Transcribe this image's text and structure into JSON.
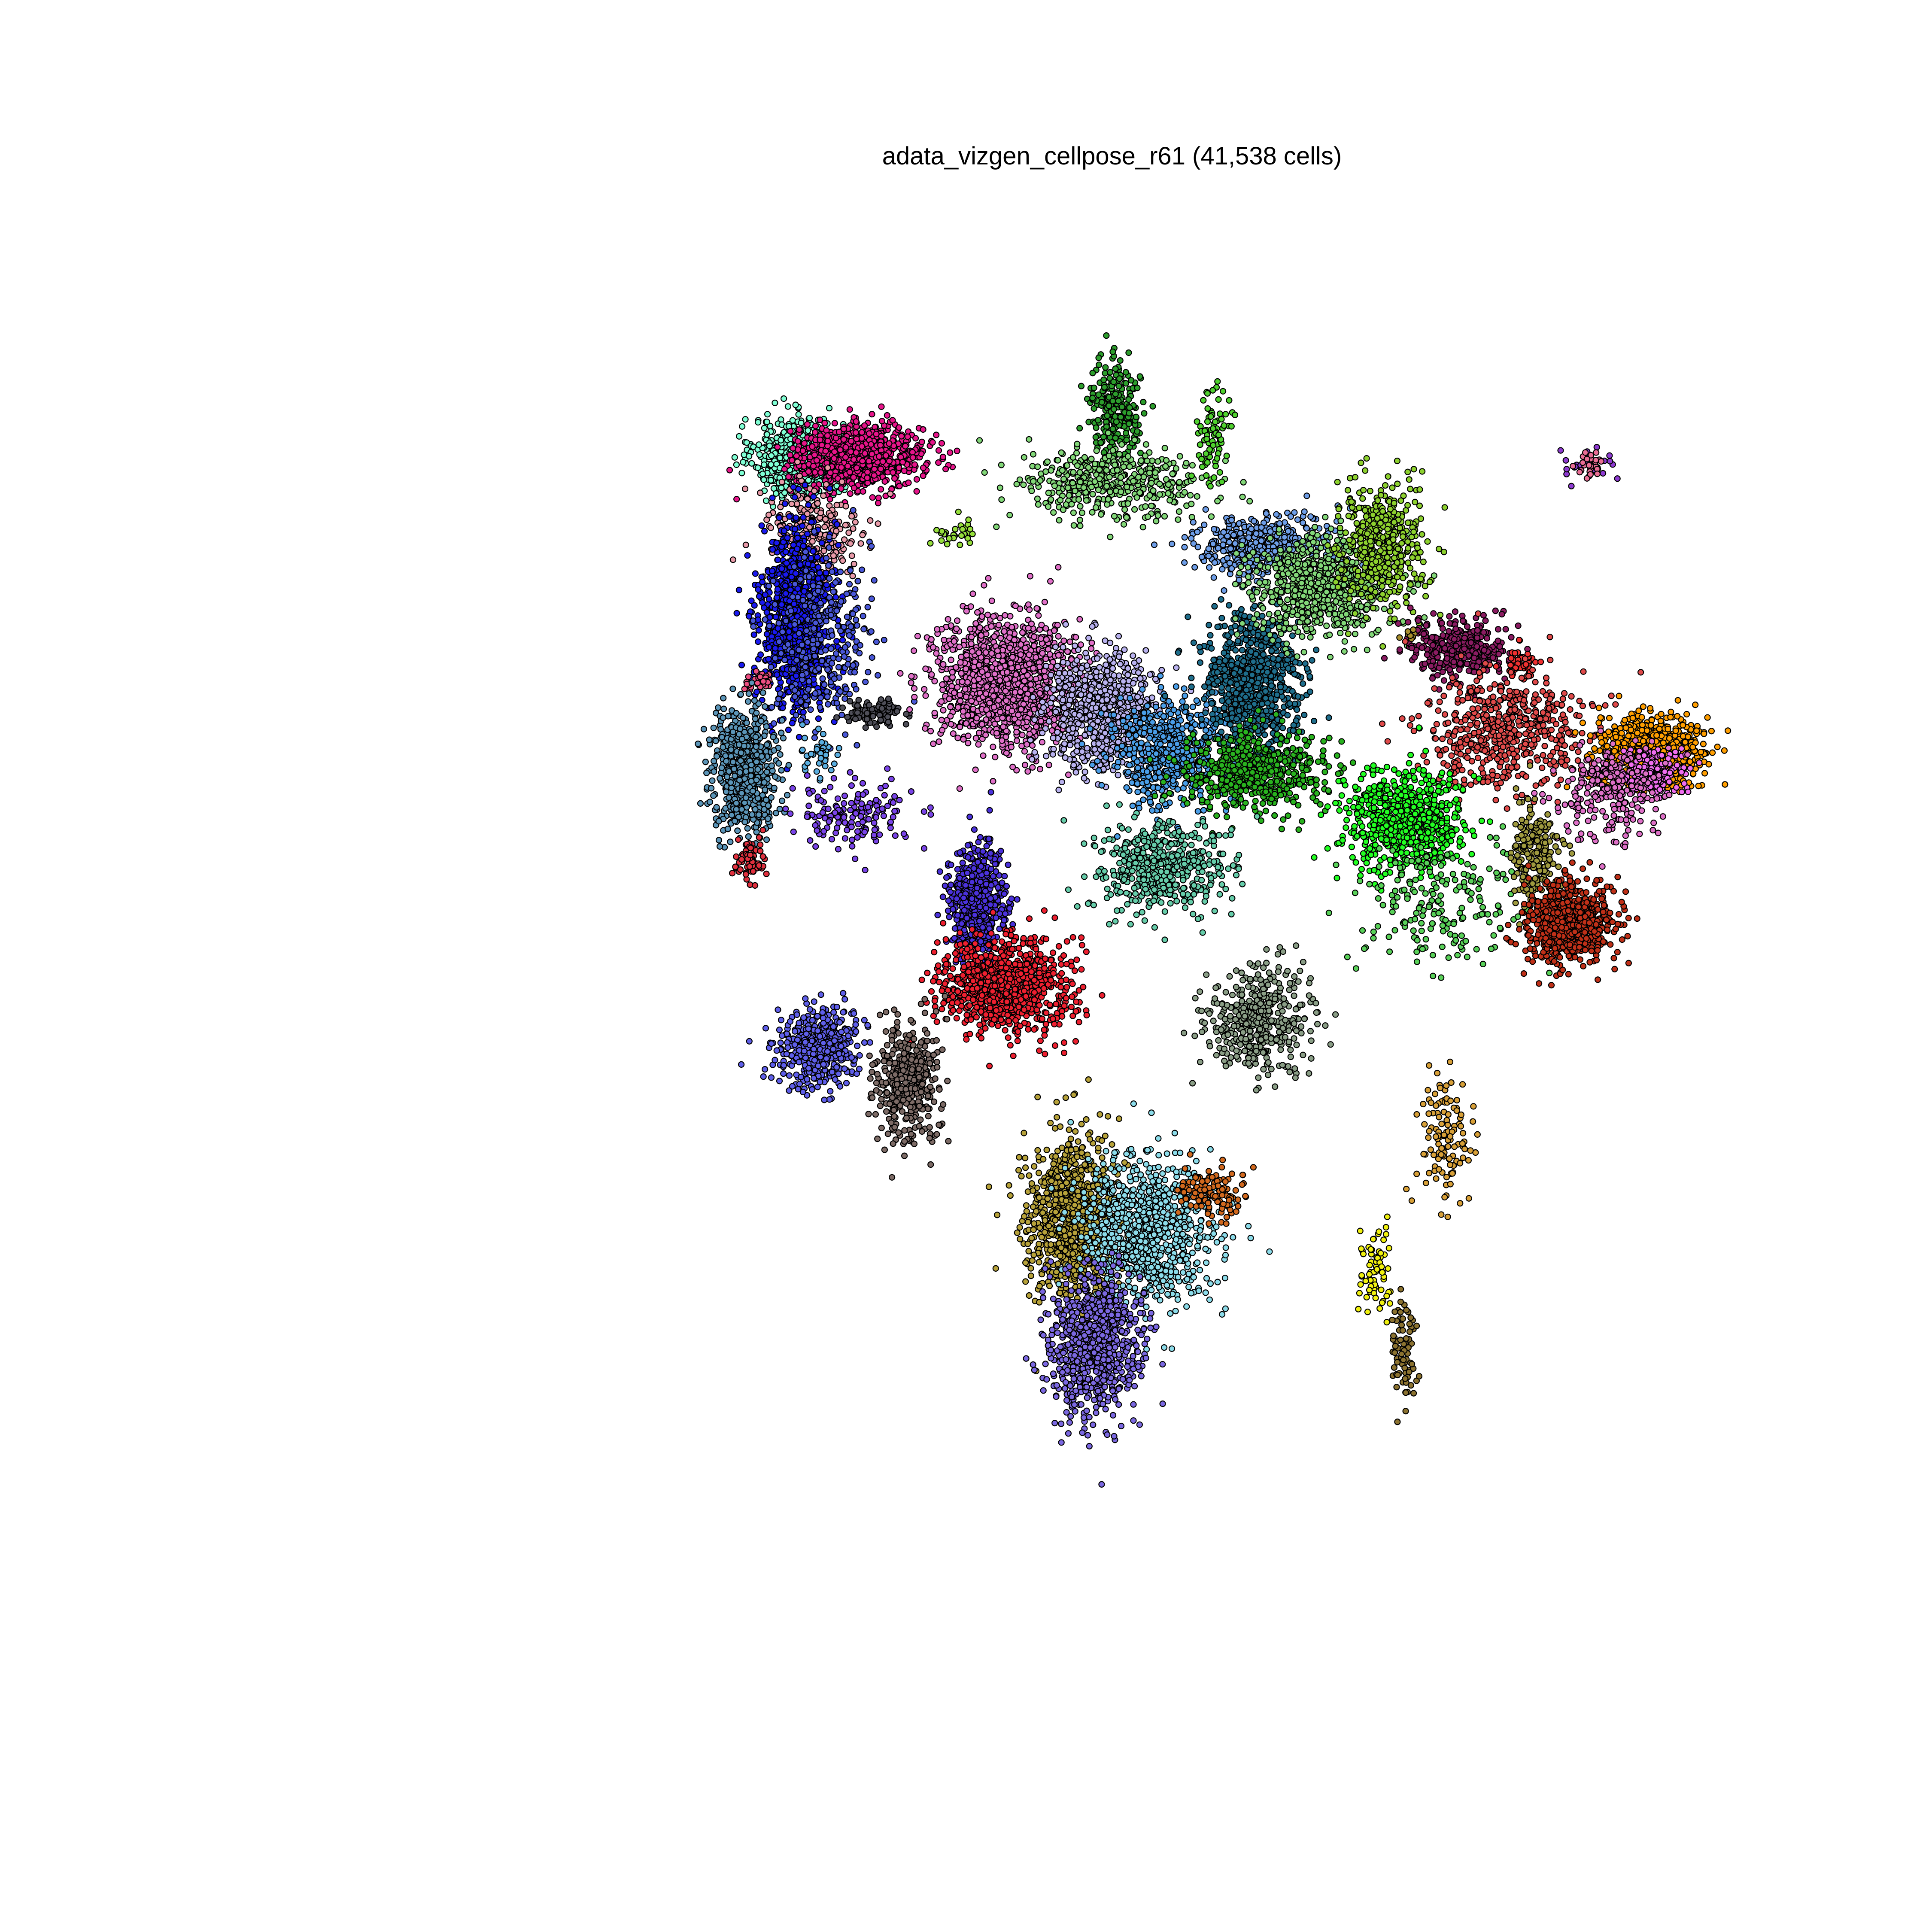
{
  "chart_data": {
    "type": "scatter",
    "title": "adata_vizgen_cellpose_r61 (41,538 cells)",
    "xlabel": "",
    "ylabel": "",
    "grid": false,
    "legend": "none",
    "axes_visible": false,
    "xlim": [
      0,
      100
    ],
    "ylim": [
      0,
      100
    ],
    "series": [
      {
        "id": "c01",
        "color": "#7fffd4",
        "center": [
          27.5,
          83.0
        ],
        "spread": [
          1.6,
          1.4
        ],
        "n": 700
      },
      {
        "id": "c02",
        "color": "#e7158a",
        "center": [
          32.0,
          83.0
        ],
        "spread": [
          2.3,
          1.1
        ],
        "n": 900
      },
      {
        "id": "c03",
        "color": "#e89aa8",
        "center": [
          28.5,
          77.5
        ],
        "spread": [
          1.8,
          2.0
        ],
        "n": 240
      },
      {
        "id": "c04",
        "color": "#1a1af0",
        "center": [
          27.3,
          71.3
        ],
        "spread": [
          1.3,
          3.4
        ],
        "n": 1000
      },
      {
        "id": "c05",
        "color": "#4a58d8",
        "center": [
          29.2,
          69.5
        ],
        "spread": [
          1.8,
          3.2
        ],
        "n": 300
      },
      {
        "id": "c06",
        "color": "#ee4f82",
        "center": [
          24.5,
          66.7
        ],
        "spread": [
          0.5,
          0.3
        ],
        "n": 40
      },
      {
        "id": "c07",
        "color": "#4e4e58",
        "center": [
          33.2,
          64.4
        ],
        "spread": [
          1.0,
          0.4
        ],
        "n": 120
      },
      {
        "id": "c08",
        "color": "#5b95b8",
        "center": [
          23.6,
          60.3
        ],
        "spread": [
          1.2,
          2.1
        ],
        "n": 650
      },
      {
        "id": "c09",
        "color": "#5aaee0",
        "center": [
          28.8,
          61.3
        ],
        "spread": [
          0.8,
          0.8
        ],
        "n": 40
      },
      {
        "id": "c10",
        "color": "#7a44e8",
        "center": [
          31.5,
          57.0
        ],
        "spread": [
          2.2,
          1.2
        ],
        "n": 160
      },
      {
        "id": "c11",
        "color": "#e0303e",
        "center": [
          24.0,
          53.7
        ],
        "spread": [
          0.6,
          0.8
        ],
        "n": 70
      },
      {
        "id": "c12",
        "color": "#2c9e2c",
        "center": [
          50.5,
          86.5
        ],
        "spread": [
          0.9,
          1.7
        ],
        "n": 250
      },
      {
        "id": "c13",
        "color": "#82d778",
        "center": [
          50.5,
          81.0
        ],
        "spread": [
          3.3,
          1.3
        ],
        "n": 450
      },
      {
        "id": "c14",
        "color": "#96df3c",
        "center": [
          39.0,
          77.5
        ],
        "spread": [
          0.8,
          0.5
        ],
        "n": 30
      },
      {
        "id": "c15",
        "color": "#4fd12e",
        "center": [
          57.7,
          84.5
        ],
        "spread": [
          0.6,
          1.7
        ],
        "n": 80
      },
      {
        "id": "c16",
        "color": "#8e3bd1",
        "center": [
          85.0,
          82.4
        ],
        "spread": [
          1.0,
          0.6
        ],
        "n": 30
      },
      {
        "id": "c17",
        "color": "#e070c8",
        "center": [
          42.5,
          66.5
        ],
        "spread": [
          2.6,
          2.4
        ],
        "n": 1300
      },
      {
        "id": "c18",
        "color": "#b9b2ef",
        "center": [
          49.5,
          64.5
        ],
        "spread": [
          2.1,
          2.1
        ],
        "n": 700
      },
      {
        "id": "c19",
        "color": "#4a9ee8",
        "center": [
          54.5,
          61.5
        ],
        "spread": [
          2.1,
          1.9
        ],
        "n": 550
      },
      {
        "id": "c20",
        "color": "#1f6e8c",
        "center": [
          60.5,
          66.5
        ],
        "spread": [
          1.8,
          2.6
        ],
        "n": 800
      },
      {
        "id": "c21",
        "color": "#29b31f",
        "center": [
          60.5,
          60.0
        ],
        "spread": [
          2.6,
          1.5
        ],
        "n": 550
      },
      {
        "id": "c22",
        "color": "#6e9ee8",
        "center": [
          61.0,
          76.5
        ],
        "spread": [
          2.5,
          1.2
        ],
        "n": 450
      },
      {
        "id": "c23",
        "color": "#82d778",
        "center": [
          65.5,
          73.5
        ],
        "spread": [
          2.5,
          1.8
        ],
        "n": 700
      },
      {
        "id": "c24",
        "color": "#8dd12e",
        "center": [
          70.0,
          76.5
        ],
        "spread": [
          1.6,
          2.3
        ],
        "n": 450
      },
      {
        "id": "c25",
        "color": "#8b1c62",
        "center": [
          75.5,
          69.0
        ],
        "spread": [
          1.9,
          1.1
        ],
        "n": 350
      },
      {
        "id": "c26",
        "color": "#f03030",
        "center": [
          80.0,
          68.0
        ],
        "spread": [
          0.6,
          0.5
        ],
        "n": 50
      },
      {
        "id": "c27",
        "color": "#e04a4a",
        "center": [
          79.0,
          63.0
        ],
        "spread": [
          3.0,
          2.2
        ],
        "n": 550
      },
      {
        "id": "c28",
        "color": "#ff9e00",
        "center": [
          89.5,
          61.5
        ],
        "spread": [
          1.8,
          1.2
        ],
        "n": 900
      },
      {
        "id": "c29",
        "color": "#f06ef0",
        "center": [
          89.5,
          60.0
        ],
        "spread": [
          1.1,
          0.8
        ],
        "n": 200
      },
      {
        "id": "c30",
        "color": "#de70c7",
        "center": [
          86.5,
          58.5
        ],
        "spread": [
          1.8,
          1.7
        ],
        "n": 250
      },
      {
        "id": "c31",
        "color": "#22ff22",
        "center": [
          71.5,
          56.5
        ],
        "spread": [
          2.2,
          1.8
        ],
        "n": 700
      },
      {
        "id": "c32",
        "color": "#59d159",
        "center": [
          74.0,
          50.5
        ],
        "spread": [
          3.0,
          2.4
        ],
        "n": 200
      },
      {
        "id": "c33",
        "color": "#9f9a3f",
        "center": [
          81.0,
          54.0
        ],
        "spread": [
          0.9,
          1.8
        ],
        "n": 200
      },
      {
        "id": "c34",
        "color": "#c03018",
        "center": [
          83.5,
          49.0
        ],
        "spread": [
          1.5,
          1.4
        ],
        "n": 800
      },
      {
        "id": "c35",
        "color": "#ea6e95",
        "center": [
          85.3,
          82.4
        ],
        "spread": [
          0.5,
          0.7
        ],
        "n": 25
      },
      {
        "id": "c36",
        "color": "#66cdaa",
        "center": [
          54.0,
          53.0
        ],
        "spread": [
          2.4,
          1.7
        ],
        "n": 500
      },
      {
        "id": "c37",
        "color": "#4b32dc",
        "center": [
          40.5,
          50.5
        ],
        "spread": [
          1.0,
          2.1
        ],
        "n": 600
      },
      {
        "id": "c38",
        "color": "#ee2030",
        "center": [
          42.5,
          44.5
        ],
        "spread": [
          2.3,
          1.7
        ],
        "n": 900
      },
      {
        "id": "c39",
        "color": "#5f5fea",
        "center": [
          29.0,
          40.0
        ],
        "spread": [
          1.6,
          1.5
        ],
        "n": 450
      },
      {
        "id": "c40",
        "color": "#7d6b66",
        "center": [
          35.5,
          37.5
        ],
        "spread": [
          1.2,
          2.2
        ],
        "n": 400
      },
      {
        "id": "c41",
        "color": "#8a9e86",
        "center": [
          61.0,
          42.0
        ],
        "spread": [
          1.8,
          1.8
        ],
        "n": 450
      },
      {
        "id": "c42",
        "color": "#a88e2e",
        "center": [
          72.0,
          70.0
        ],
        "spread": [
          0.3,
          0.3
        ],
        "n": 8
      },
      {
        "id": "c43",
        "color": "#b7a23a",
        "center": [
          47.5,
          27.5
        ],
        "spread": [
          1.6,
          3.0
        ],
        "n": 1000
      },
      {
        "id": "c44",
        "color": "#8cdcea",
        "center": [
          53.0,
          26.5
        ],
        "spread": [
          2.4,
          2.6
        ],
        "n": 900
      },
      {
        "id": "c45",
        "color": "#d2691e",
        "center": [
          57.5,
          29.5
        ],
        "spread": [
          1.2,
          0.8
        ],
        "n": 120
      },
      {
        "id": "c46",
        "color": "#7b68e1",
        "center": [
          49.0,
          18.5
        ],
        "spread": [
          1.6,
          2.6
        ],
        "n": 800
      },
      {
        "id": "c47",
        "color": "#d8a038",
        "center": [
          74.5,
          33.5
        ],
        "spread": [
          0.9,
          2.4
        ],
        "n": 120
      },
      {
        "id": "c48",
        "color": "#f0f010",
        "center": [
          69.5,
          23.5
        ],
        "spread": [
          0.6,
          2.0
        ],
        "n": 70
      },
      {
        "id": "c49",
        "color": "#8b7230",
        "center": [
          71.5,
          18.0
        ],
        "spread": [
          0.5,
          1.8
        ],
        "n": 80
      }
    ]
  }
}
